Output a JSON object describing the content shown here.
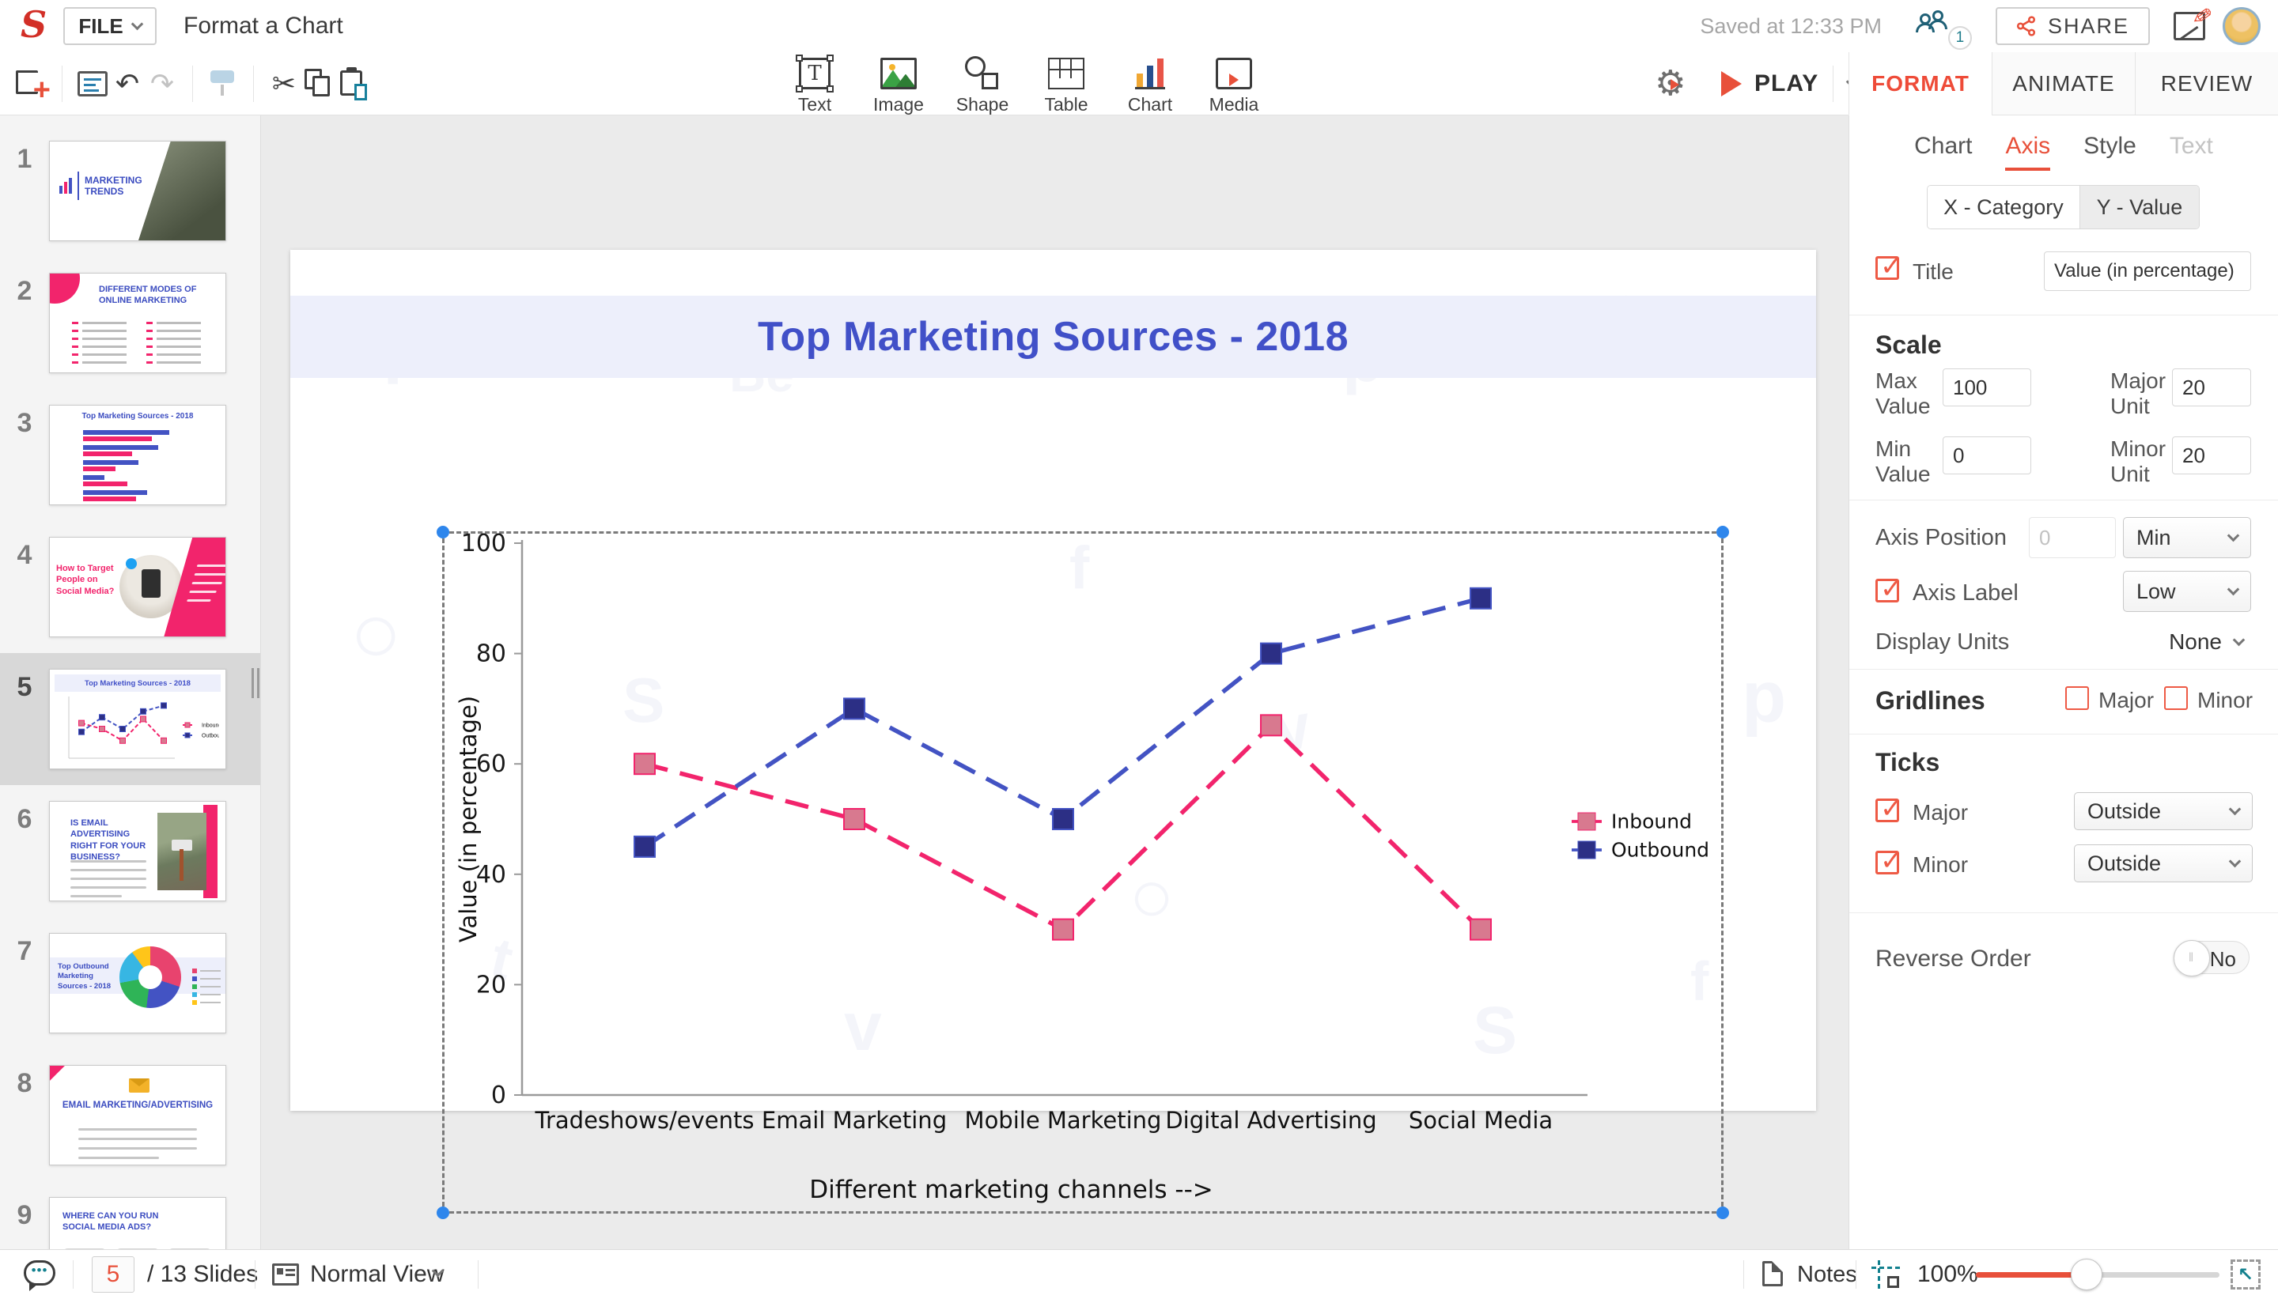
{
  "header": {
    "file_label": "FILE",
    "doc_title": "Format a Chart",
    "saved_status": "Saved at 12:33 PM",
    "collab_badge": "1",
    "share_label": "SHARE",
    "play_label": "PLAY"
  },
  "toolbar": {
    "insert": [
      {
        "label": "Text"
      },
      {
        "label": "Image"
      },
      {
        "label": "Shape"
      },
      {
        "label": "Table"
      },
      {
        "label": "Chart"
      },
      {
        "label": "Media"
      }
    ]
  },
  "sidebar": {
    "slides": [
      {
        "num": "1",
        "title": "MARKETING TRENDS"
      },
      {
        "num": "2",
        "title": "DIFFERENT MODES OF ONLINE MARKETING"
      },
      {
        "num": "3",
        "title": "Top Marketing Sources - 2018"
      },
      {
        "num": "4",
        "title": "How to Target People on Social Media?"
      },
      {
        "num": "5",
        "title": "Top Marketing Sources - 2018"
      },
      {
        "num": "6",
        "title": "IS EMAIL ADVERTISING RIGHT FOR YOUR BUSINESS?"
      },
      {
        "num": "7",
        "title": "Top Outbound Marketing Sources - 2018"
      },
      {
        "num": "8",
        "title": "EMAIL MARKETING/ADVERTISING"
      },
      {
        "num": "9",
        "title": "WHERE CAN YOU RUN SOCIAL MEDIA ADS?"
      }
    ]
  },
  "chart_data": {
    "type": "line",
    "title": "Top Marketing Sources - 2018",
    "categories": [
      "Tradeshows/events",
      "Email Marketing",
      "Mobile Marketing",
      "Digital Advertising",
      "Social Media"
    ],
    "series": [
      {
        "name": "Inbound",
        "line_color": "#f2246c",
        "marker_color": "#d8798f",
        "values": [
          60,
          50,
          30,
          67,
          30
        ]
      },
      {
        "name": "Outbound",
        "line_color": "#4353c3",
        "marker_color": "#2c2f85",
        "values": [
          45,
          70,
          50,
          80,
          90
        ]
      }
    ],
    "xlabel": "Different marketing channels -->",
    "ylabel": "Value (in percentage)",
    "ylim": [
      0,
      100
    ],
    "yticks": [
      0,
      20,
      40,
      60,
      80,
      100
    ],
    "grid": false,
    "line_style": "dashed",
    "legend_position": "right"
  },
  "panel": {
    "tabs": [
      "FORMAT",
      "ANIMATE",
      "REVIEW"
    ],
    "subtabs": [
      "Chart",
      "Axis",
      "Style",
      "Text"
    ],
    "axis_toggle": [
      "X - Category",
      "Y - Value"
    ],
    "title_label": "Title",
    "title_value": "Value (in percentage)",
    "scale": {
      "heading": "Scale",
      "max_label": "Max Value",
      "max_value": "100",
      "major_label": "Major Unit",
      "major_value": "20",
      "min_label": "Min Value",
      "min_value": "0",
      "minor_label": "Minor Unit",
      "minor_value": "20"
    },
    "axis_position": {
      "label": "Axis Position",
      "value": "0",
      "dropdown": "Min"
    },
    "axis_label": {
      "label": "Axis Label",
      "dropdown": "Low"
    },
    "display_units": {
      "label": "Display Units",
      "dropdown": "None"
    },
    "gridlines": {
      "heading": "Gridlines",
      "major": "Major",
      "minor": "Minor"
    },
    "ticks": {
      "heading": "Ticks",
      "major": "Major",
      "major_dropdown": "Outside",
      "minor": "Minor",
      "minor_dropdown": "Outside"
    },
    "reverse": {
      "label": "Reverse Order",
      "value": "No"
    }
  },
  "statusbar": {
    "slide_number": "5",
    "slides_total": "/ 13 Slides",
    "view": "Normal View",
    "notes": "Notes",
    "zoom": "100%"
  },
  "accent_colors": {
    "brand_red": "#e8503a",
    "indigo": "#4150c8",
    "pink": "#f2246c",
    "teal": "#17809c"
  }
}
